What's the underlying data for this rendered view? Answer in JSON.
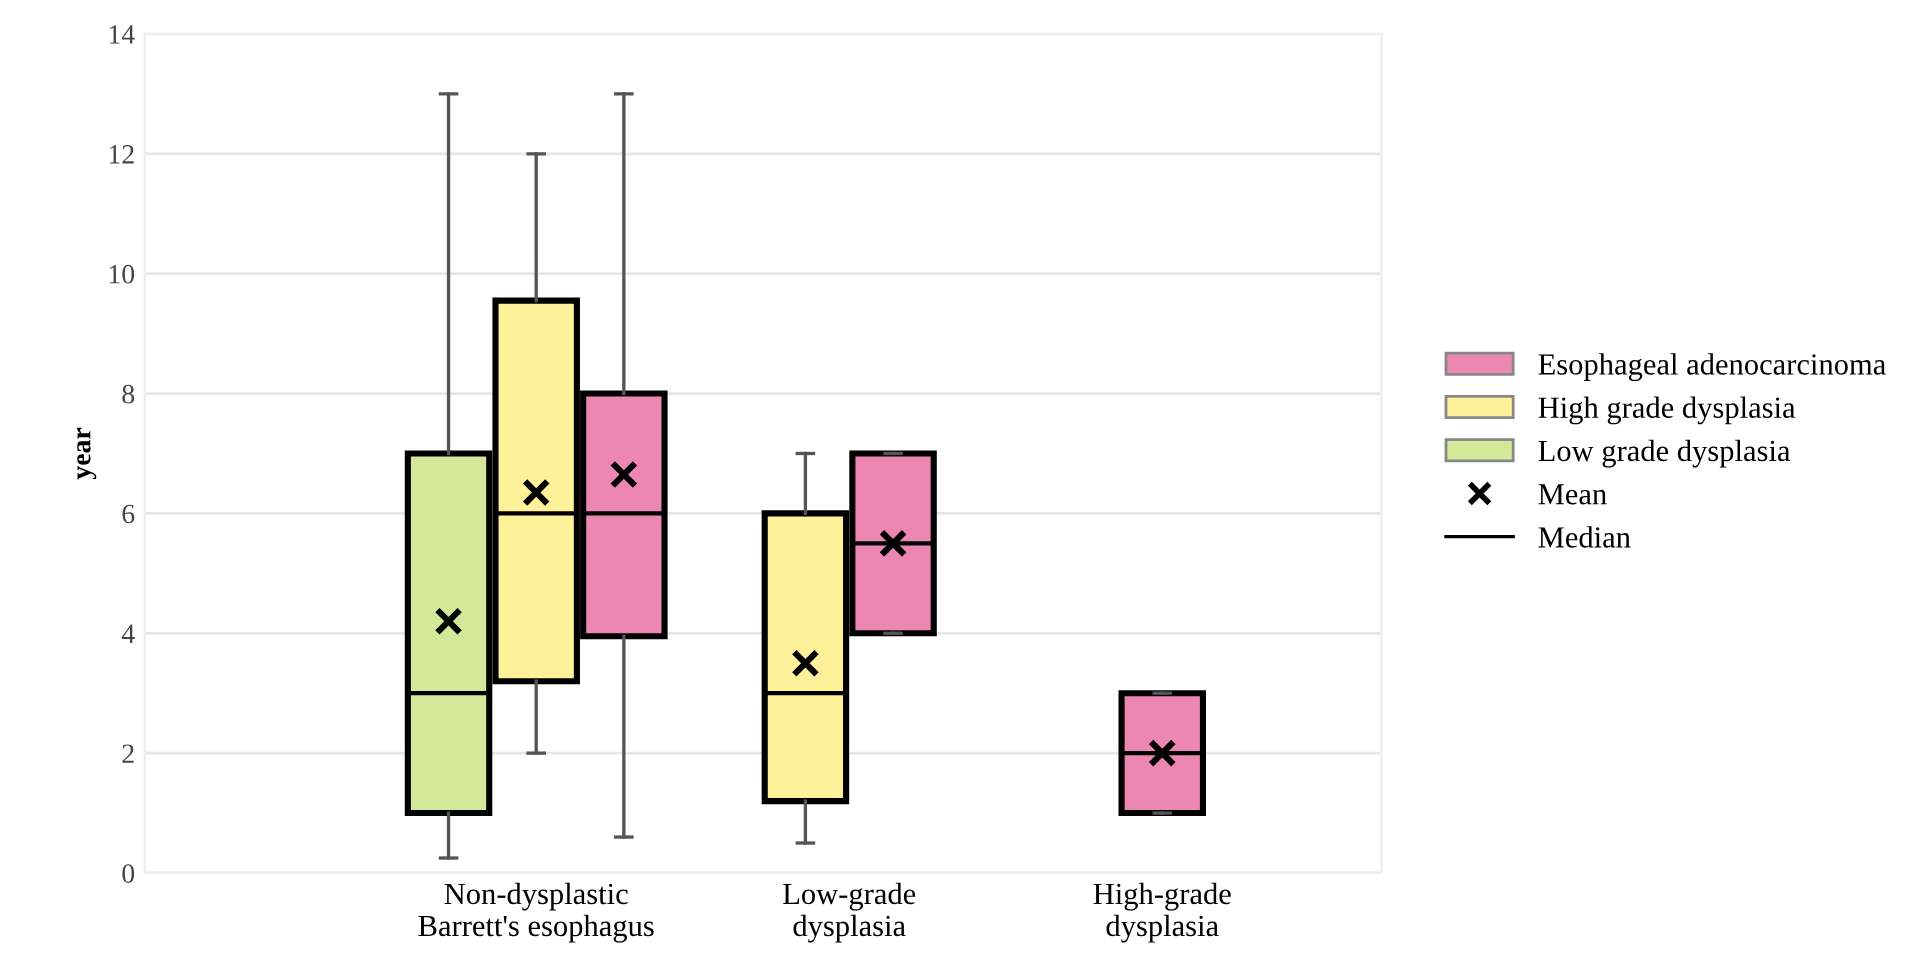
{
  "chart_data": {
    "type": "box",
    "ylabel": "year",
    "categories": [
      "Non-dysplastic\nBarrett's esophagus",
      "Low-grade\ndysplasia",
      "High-grade\ndysplasia"
    ],
    "series": [
      {
        "name": "Low grade dysplasia",
        "color": "#d4e89a",
        "boxes": [
          {
            "low": 0.25,
            "q1": 1,
            "median": 3,
            "q3": 7,
            "high": 13,
            "mean": 4.2
          },
          null,
          null
        ]
      },
      {
        "name": "High grade dysplasia",
        "color": "#fff09a",
        "boxes": [
          {
            "low": 2,
            "q1": 3.2,
            "median": 6,
            "q3": 9.55,
            "high": 12,
            "mean": 6.35
          },
          {
            "low": 0.5,
            "q1": 1.2,
            "median": 3,
            "q3": 6,
            "high": 7,
            "mean": 3.5
          },
          null
        ]
      },
      {
        "name": "Esophageal adenocarcinoma",
        "color": "#ec87b4",
        "boxes": [
          {
            "low": 0.6,
            "q1": 3.95,
            "median": 6,
            "q3": 8,
            "high": 13,
            "mean": 6.65
          },
          {
            "low": 4,
            "q1": 4,
            "median": 5.5,
            "q3": 7,
            "high": 7,
            "mean": 5.5
          },
          {
            "low": 1,
            "q1": 1,
            "median": 2,
            "q3": 3,
            "high": 3,
            "mean": 2
          }
        ]
      }
    ],
    "ylim": [
      0,
      14
    ],
    "yticks": [
      0,
      2,
      4,
      6,
      8,
      10,
      12,
      14
    ],
    "grid": "y",
    "legend": "right",
    "annotations": [
      "Mean",
      "Median"
    ]
  }
}
